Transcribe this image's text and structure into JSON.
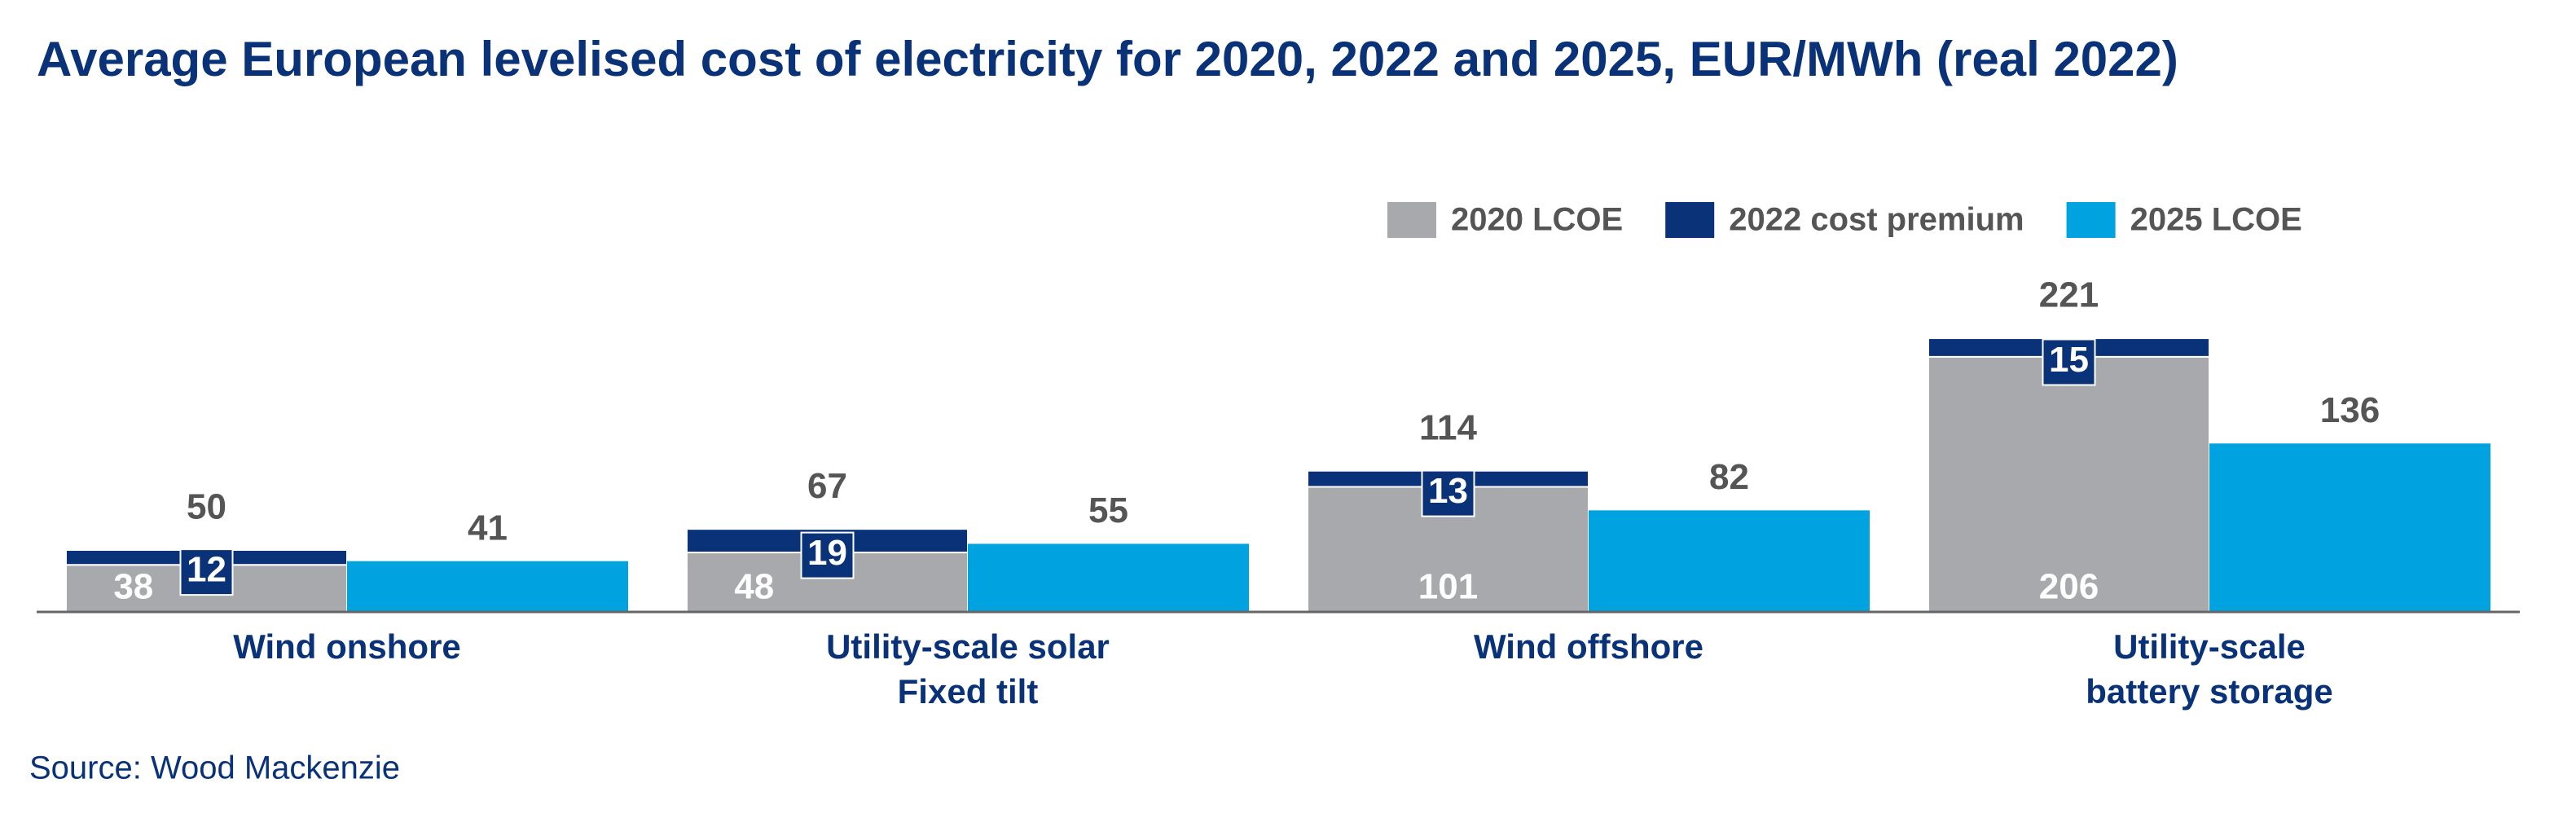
{
  "chart_data": {
    "type": "bar",
    "title": "Average European levelised cost of electricity for 2020, 2022 and 2025, EUR/MWh (real 2022)",
    "source": "Source: Wood Mackenzie",
    "categories": [
      [
        "Wind onshore"
      ],
      [
        "Utility-scale solar",
        "Fixed tilt"
      ],
      [
        "Wind offshore"
      ],
      [
        "Utility-scale",
        "battery storage"
      ]
    ],
    "series": [
      {
        "name": "2020 LCOE",
        "color": "#a7a9ac",
        "values": [
          38,
          48,
          101,
          206
        ]
      },
      {
        "name": "2022 cost premium",
        "color": "#0a3278",
        "values": [
          12,
          19,
          13,
          15
        ]
      },
      {
        "name": "2025 LCOE",
        "color": "#00a3e0",
        "values": [
          41,
          55,
          82,
          136
        ]
      }
    ],
    "totals": [
      50,
      67,
      114,
      221
    ],
    "ylim": [
      0,
      300
    ]
  }
}
